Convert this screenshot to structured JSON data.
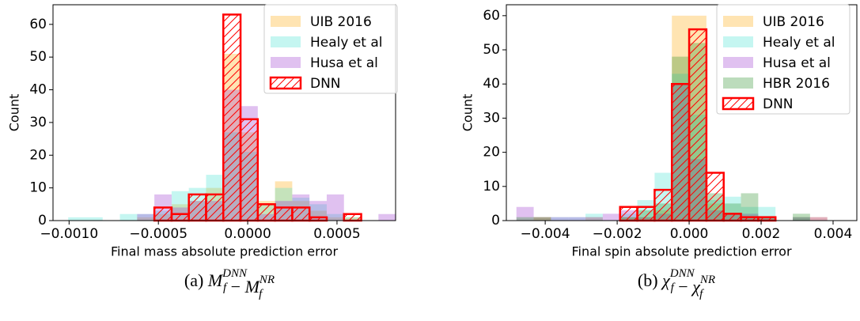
{
  "charts": [
    {
      "chart_data": {
        "type": "histogram",
        "xlabel": "Final mass absolute prediction error",
        "ylabel": "Count",
        "xlim": [
          -0.00109,
          0.000828
        ],
        "ylim": [
          0,
          66
        ],
        "xticks": [
          {
            "value": -0.001,
            "label": "−0.0010"
          },
          {
            "value": -0.0005,
            "label": "−0.0005"
          },
          {
            "value": 0,
            "label": "0.0000"
          },
          {
            "value": 0.0005,
            "label": "0.0005"
          }
        ],
        "yticks": [
          0,
          10,
          20,
          30,
          40,
          50,
          60
        ],
        "legend": "upper right",
        "bins": [
          -0.001005,
          -0.0009085,
          -0.000812,
          -0.0007155,
          -0.000619,
          -0.0005225,
          -0.000426,
          -0.0003295,
          -0.000233,
          -0.0001365,
          -4e-05,
          5.65e-05,
          0.000153,
          0.0002495,
          0.000346,
          0.0004425,
          0.000539,
          0.0006355,
          0.000732,
          0.0008285
        ],
        "series": [
          {
            "name": "UIB 2016",
            "color": "#ffa500",
            "values": [
              0,
              0,
              0,
              0,
              1,
              2,
              5,
              6,
              10,
              51,
              27,
              6,
              12,
              6,
              3,
              1,
              1,
              0,
              0
            ]
          },
          {
            "name": "Healy et al",
            "color": "#40e0d0",
            "values": [
              1,
              1,
              0,
              2,
              2,
              3,
              9,
              10,
              14,
              27,
              21,
              5,
              10,
              7,
              5,
              2,
              1,
              0,
              0
            ]
          },
          {
            "name": "Husa et al",
            "color": "#9932cc",
            "values": [
              0,
              0,
              0,
              0,
              2,
              8,
              4,
              6,
              6,
              40,
              35,
              2,
              6,
              8,
              6,
              8,
              0,
              0,
              2
            ]
          },
          {
            "name": "DNN",
            "color": "#ff0000",
            "hatch": true,
            "values": [
              0,
              0,
              0,
              0,
              0,
              4,
              2,
              8,
              8,
              63,
              31,
              5,
              4,
              4,
              1,
              0,
              2,
              0,
              0
            ]
          }
        ]
      },
      "caption": {
        "label": "(a)",
        "operator": "−",
        "terms": [
          {
            "base": "M",
            "sub": "f",
            "sup": "DNN"
          },
          {
            "base": "M",
            "sub": "f",
            "sup": "NR"
          }
        ]
      }
    },
    {
      "chart_data": {
        "type": "histogram",
        "xlabel": "Final spin absolute prediction error",
        "ylabel": "Count",
        "xlim": [
          -0.00508,
          0.00466
        ],
        "ylim": [
          0,
          63.2
        ],
        "xticks": [
          {
            "value": -0.004,
            "label": "−0.004"
          },
          {
            "value": -0.002,
            "label": "−0.002"
          },
          {
            "value": 0,
            "label": "0.000"
          },
          {
            "value": 0.002,
            "label": "0.002"
          },
          {
            "value": 0.004,
            "label": "0.004"
          }
        ],
        "yticks": [
          0,
          10,
          20,
          30,
          40,
          50,
          60
        ],
        "legend": "upper right",
        "bins": [
          -0.0048,
          -0.00432,
          -0.00384,
          -0.00336,
          -0.00288,
          -0.0024,
          -0.00192,
          -0.00144,
          -0.00096,
          -0.00048,
          0,
          0.00048,
          0.00096,
          0.00144,
          0.00192,
          0.0024,
          0.00288,
          0.00336,
          0.00384,
          0.00432
        ],
        "series": [
          {
            "name": "UIB 2016",
            "color": "#ffa500",
            "values": [
              0,
              1,
              0,
              0,
              1,
              0,
              1,
              1,
              3,
              60,
              60,
              5,
              2,
              1,
              1,
              0,
              1,
              1,
              0
            ]
          },
          {
            "name": "Healy et al",
            "color": "#40e0d0",
            "values": [
              0,
              0,
              1,
              1,
              2,
              0,
              2,
              6,
              14,
              43,
              31,
              6,
              7,
              4,
              4,
              0,
              1,
              0,
              0
            ]
          },
          {
            "name": "Husa et al",
            "color": "#9932cc",
            "values": [
              4,
              1,
              1,
              1,
              1,
              2,
              3,
              1,
              2,
              40,
              18,
              3,
              2,
              2,
              1,
              0,
              1,
              1,
              0
            ]
          },
          {
            "name": "HBR 2016",
            "color": "#228b22",
            "values": [
              1,
              1,
              0,
              0,
              0,
              0,
              1,
              3,
              5,
              48,
              52,
              8,
              5,
              8,
              1,
              0,
              2,
              0,
              0
            ]
          },
          {
            "name": "DNN",
            "color": "#ff0000",
            "hatch": true,
            "values": [
              0,
              0,
              0,
              0,
              0,
              0,
              4,
              4,
              9,
              40,
              56,
              14,
              2,
              1,
              1,
              0,
              0,
              0,
              0
            ]
          }
        ]
      },
      "caption": {
        "label": "(b)",
        "operator": "−",
        "terms": [
          {
            "base": "χ",
            "sub": "f",
            "sup": "DNN"
          },
          {
            "base": "χ",
            "sub": "f",
            "sup": "NR"
          }
        ]
      }
    }
  ]
}
